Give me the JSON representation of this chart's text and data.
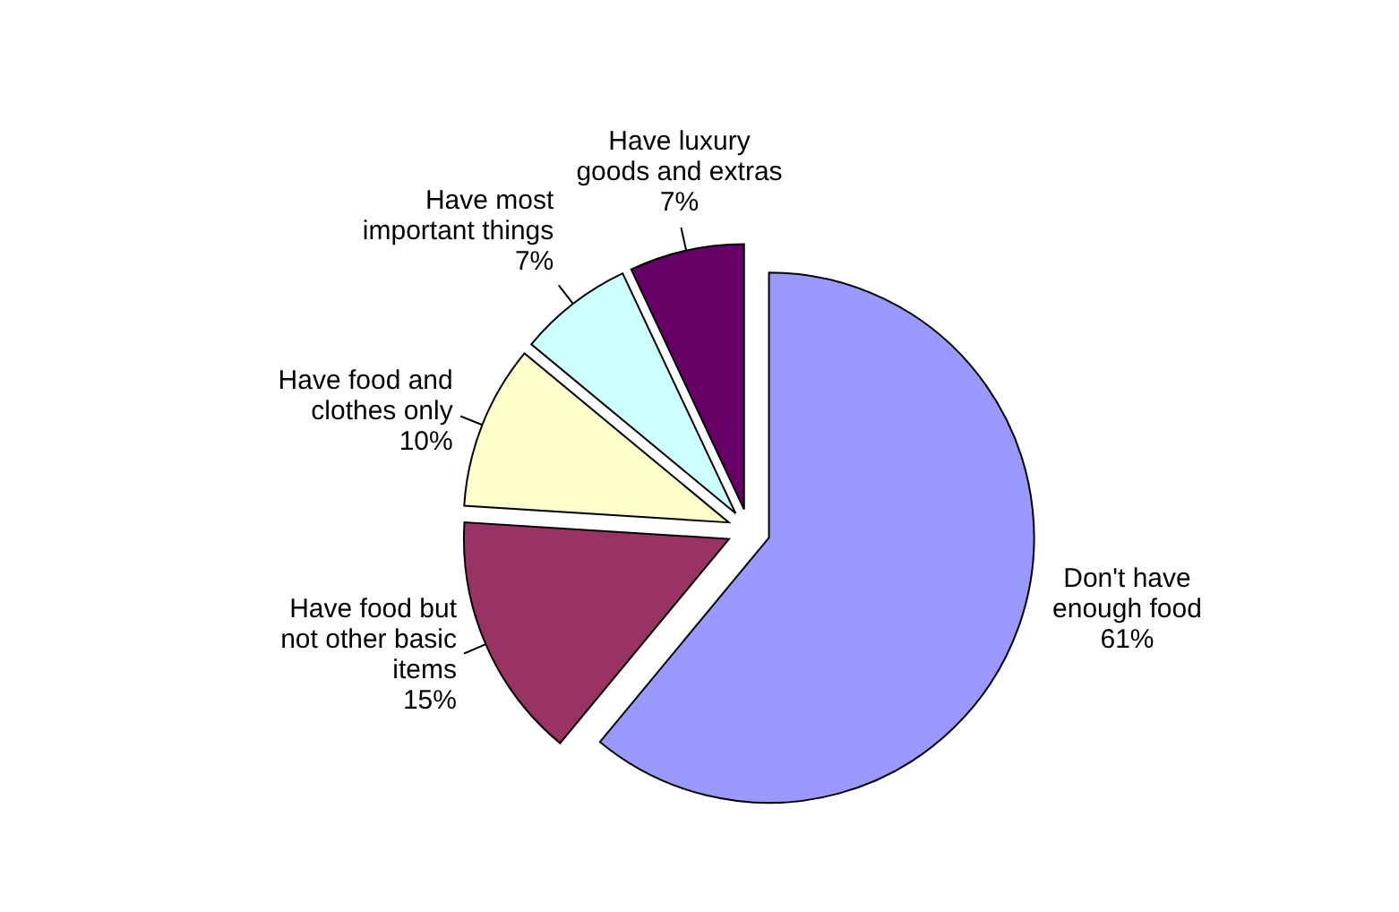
{
  "chart_data": {
    "type": "pie",
    "categories": [
      "Don't have enough food",
      "Have food but not other basic items",
      "Have food and clothes only",
      "Have most important things",
      "Have luxury goods and extras"
    ],
    "values": [
      61,
      15,
      10,
      7,
      7
    ],
    "colors": [
      "#9999ff",
      "#993366",
      "#ffffcc",
      "#ccffff",
      "#660066"
    ],
    "value_labels": [
      "61%",
      "15%",
      "10%",
      "7%",
      "7%"
    ]
  }
}
